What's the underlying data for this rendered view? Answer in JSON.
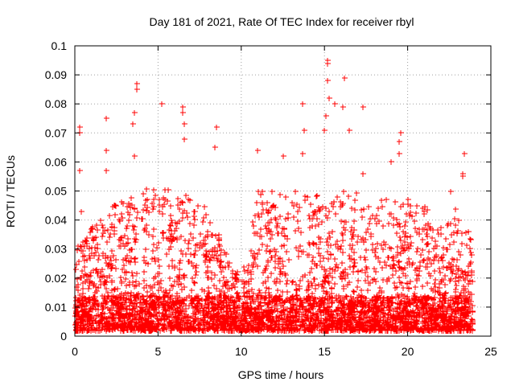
{
  "chart_data": {
    "type": "scatter",
    "title": "Day 181 of 2021, Rate Of TEC Index for receiver rbyl",
    "xlabel": "GPS time / hours",
    "ylabel": "ROTI / TECUs",
    "xlim": [
      0,
      25
    ],
    "ylim": [
      0,
      0.1
    ],
    "xticks": [
      0,
      5,
      10,
      15,
      20,
      25
    ],
    "xtick_labels": [
      "0",
      "5",
      "10",
      "15",
      "20",
      "25"
    ],
    "yticks": [
      0,
      0.01,
      0.02,
      0.03,
      0.04,
      0.05,
      0.06,
      0.07,
      0.08,
      0.09,
      0.1
    ],
    "ytick_labels": [
      "0",
      "0.01",
      "0.02",
      "0.03",
      "0.04",
      "0.05",
      "0.06",
      "0.07",
      "0.08",
      "0.09",
      "0.1"
    ],
    "grid": true,
    "marker": "+",
    "color": "#ff0000",
    "series": [
      {
        "name": "ROTI",
        "notable_points": [
          [
            0.3,
            0.072
          ],
          [
            0.3,
            0.07
          ],
          [
            0.3,
            0.057
          ],
          [
            0.4,
            0.043
          ],
          [
            1.9,
            0.075
          ],
          [
            1.9,
            0.064
          ],
          [
            1.9,
            0.057
          ],
          [
            3.7,
            0.087
          ],
          [
            3.7,
            0.085
          ],
          [
            3.6,
            0.077
          ],
          [
            3.5,
            0.073
          ],
          [
            3.6,
            0.062
          ],
          [
            5.2,
            0.08
          ],
          [
            6.5,
            0.079
          ],
          [
            6.5,
            0.077
          ],
          [
            6.6,
            0.073
          ],
          [
            6.6,
            0.068
          ],
          [
            8.5,
            0.072
          ],
          [
            8.4,
            0.065
          ],
          [
            11.0,
            0.064
          ],
          [
            12.5,
            0.062
          ],
          [
            13.7,
            0.08
          ],
          [
            13.8,
            0.071
          ],
          [
            13.7,
            0.063
          ],
          [
            15.2,
            0.095
          ],
          [
            15.2,
            0.094
          ],
          [
            15.2,
            0.088
          ],
          [
            15.3,
            0.082
          ],
          [
            15.1,
            0.076
          ],
          [
            15.0,
            0.071
          ],
          [
            15.6,
            0.08
          ],
          [
            16.2,
            0.089
          ],
          [
            16.1,
            0.079
          ],
          [
            16.5,
            0.071
          ],
          [
            17.3,
            0.079
          ],
          [
            17.3,
            0.056
          ],
          [
            19.6,
            0.07
          ],
          [
            19.5,
            0.067
          ],
          [
            19.5,
            0.063
          ],
          [
            19.0,
            0.06
          ],
          [
            23.4,
            0.063
          ],
          [
            23.3,
            0.056
          ],
          [
            23.3,
            0.055
          ],
          [
            22.6,
            0.05
          ]
        ],
        "bulk_envelope": {
          "x": [
            0,
            1,
            2,
            3,
            4,
            5,
            6,
            7,
            8,
            9,
            10,
            11,
            12,
            13,
            14,
            15,
            16,
            17,
            18,
            19,
            20,
            21,
            22,
            23,
            24
          ],
          "typical_max": [
            0.032,
            0.038,
            0.045,
            0.048,
            0.05,
            0.052,
            0.05,
            0.048,
            0.045,
            0.03,
            0.02,
            0.05,
            0.052,
            0.05,
            0.05,
            0.048,
            0.05,
            0.05,
            0.045,
            0.05,
            0.048,
            0.045,
            0.04,
            0.045,
            0.035
          ],
          "min": 0.002
        }
      }
    ]
  }
}
